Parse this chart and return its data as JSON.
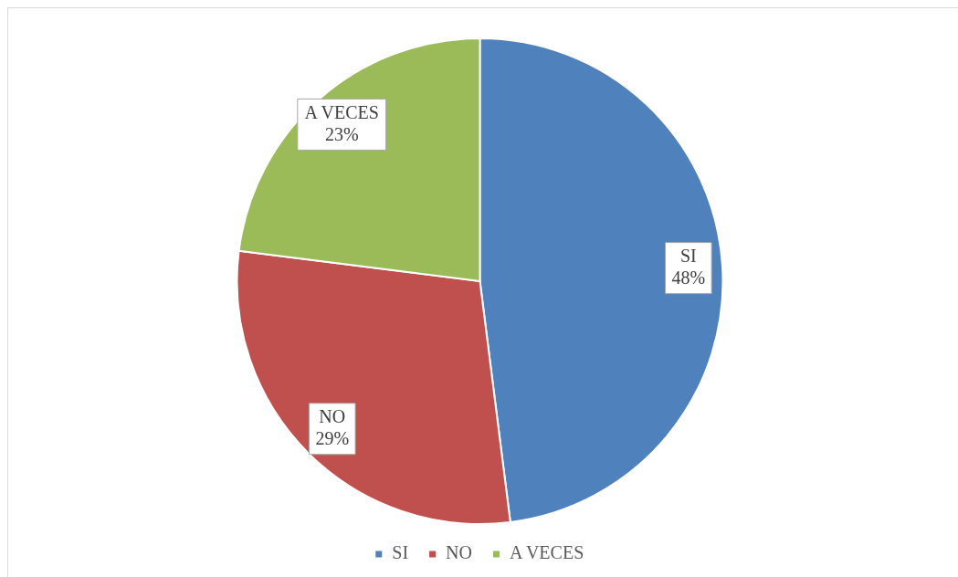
{
  "chart_data": {
    "type": "pie",
    "categories": [
      "SI",
      "NO",
      "A VECES"
    ],
    "values": [
      48,
      29,
      23
    ],
    "value_labels": [
      "48%",
      "29%",
      "23%"
    ],
    "colors": [
      "#4f81bd",
      "#c0504d",
      "#9bbb59"
    ],
    "legend": "bottom"
  }
}
